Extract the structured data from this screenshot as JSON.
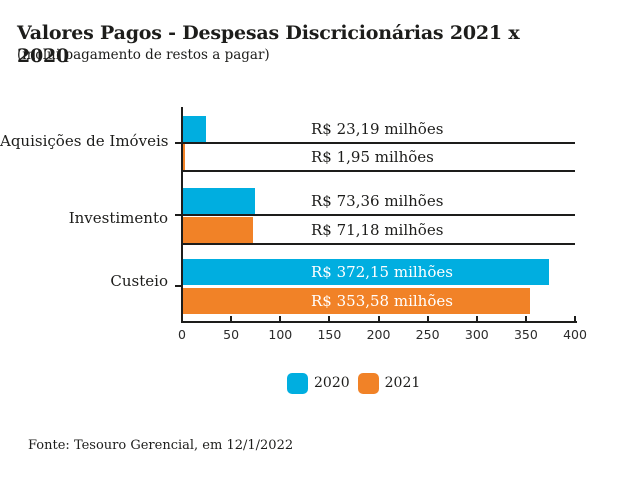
{
  "page": {
    "title": "Valores Pagos - Despesas Discricionárias 2021 x 2020",
    "subtitle": "(inclui pagamento de restos a pagar)",
    "source": "Fonte: Tesouro Gerencial, em 12/1/2022"
  },
  "colors": {
    "series_2020": "#00AEE0",
    "series_2021": "#F18227",
    "text": "#1D1D1B",
    "axis_line": "#1D1D1B",
    "inside_bar_label": "#FFFFFF"
  },
  "chart_data": {
    "type": "bar",
    "orientation": "horizontal",
    "title": "Valores Pagos - Despesas Discricionárias 2021 x 2020",
    "subtitle": "(inclui pagamento de restos a pagar)",
    "categories": [
      "Aquisições de Imóveis",
      "Investimento",
      "Custeio"
    ],
    "series": [
      {
        "name": "2020",
        "color": "#00AEE0",
        "values": [
          23.19,
          73.36,
          372.15
        ],
        "labels": [
          "R$ 23,19 milhões",
          "R$ 73,36 milhões",
          "R$ 372,15 milhões"
        ]
      },
      {
        "name": "2021",
        "color": "#F18227",
        "values": [
          1.95,
          71.18,
          353.58
        ],
        "labels": [
          "R$ 1,95 milhões",
          "R$ 71,18 milhões",
          "R$ 353,58 milhões"
        ]
      }
    ],
    "value_unit": "R$ milhões",
    "xlim": [
      0,
      400
    ],
    "x_ticks": [
      0,
      50,
      100,
      150,
      200,
      250,
      300,
      350,
      400
    ],
    "grid": "row-separators",
    "legend_position": "bottom",
    "source": "Fonte: Tesouro Gerencial, em 12/1/2022"
  }
}
